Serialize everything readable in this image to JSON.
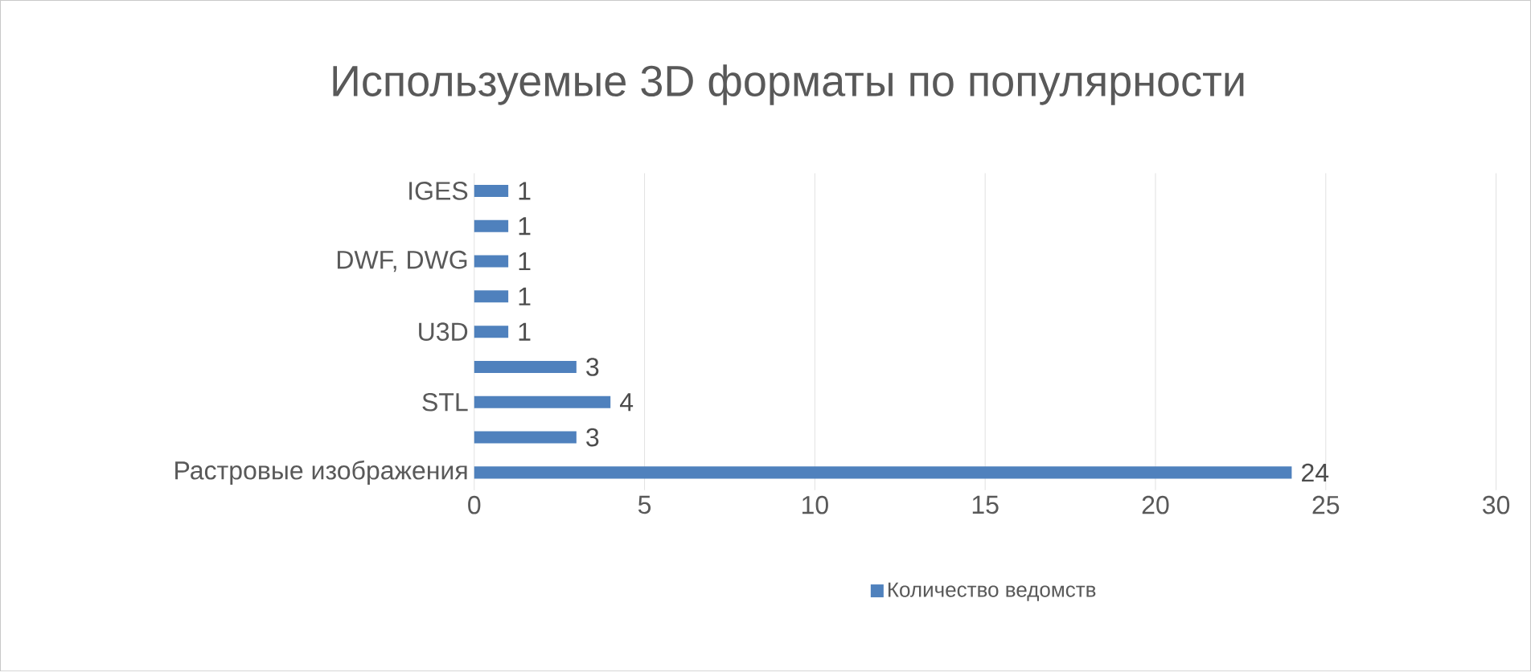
{
  "chart_data": {
    "type": "bar",
    "orientation": "horizontal",
    "title": "Используемые 3D форматы по популярности",
    "categories": [
      "IGES",
      null,
      "DWF, DWG",
      null,
      "U3D",
      null,
      "STL",
      null,
      "Растровые изображения"
    ],
    "series": [
      {
        "name": "Количество ведомств",
        "color": "#4f81bd",
        "values": [
          1,
          1,
          1,
          1,
          1,
          3,
          4,
          3,
          24
        ]
      }
    ],
    "xlim": [
      0,
      30
    ],
    "xticks": [
      0,
      5,
      10,
      15,
      20,
      25,
      30
    ],
    "grid": "x",
    "legend": "bottom",
    "data_labels": true
  }
}
